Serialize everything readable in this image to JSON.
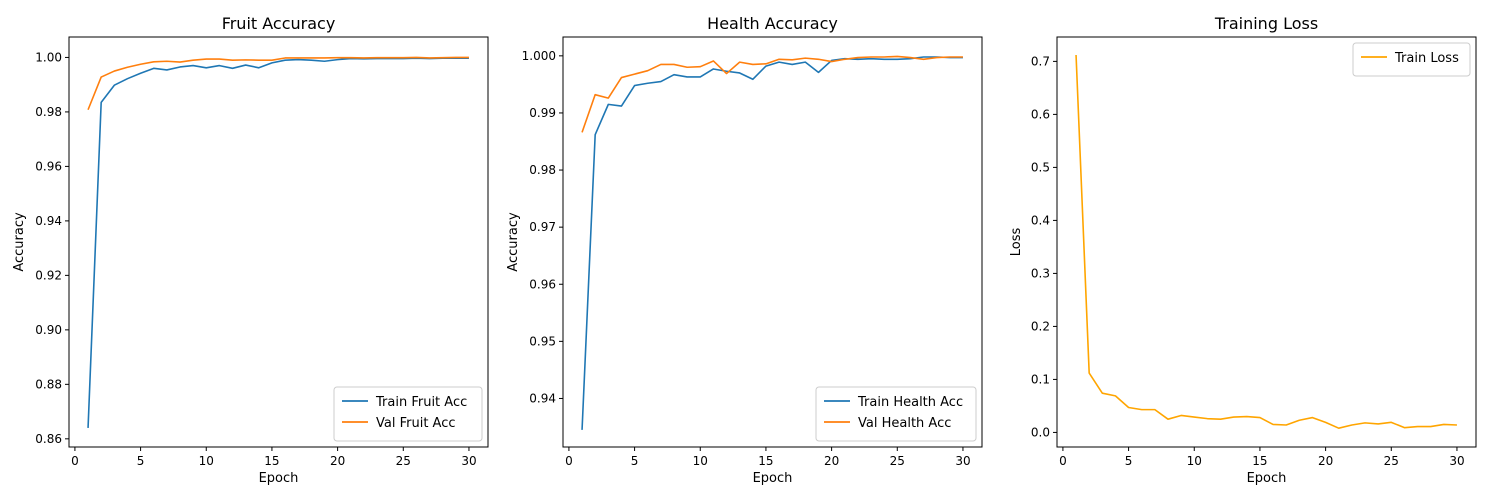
{
  "chart_data": [
    {
      "type": "line",
      "title": "Fruit Accuracy",
      "xlabel": "Epoch",
      "ylabel": "Accuracy",
      "xlim": [
        -0.45,
        31.45
      ],
      "ylim": [
        0.857,
        1.0075
      ],
      "xticks": [
        0,
        5,
        10,
        15,
        20,
        25,
        30
      ],
      "xtick_labels": [
        "0",
        "5",
        "10",
        "15",
        "20",
        "25",
        "30"
      ],
      "yticks": [
        0.86,
        0.88,
        0.9,
        0.92,
        0.94,
        0.96,
        0.98,
        1.0
      ],
      "ytick_labels": [
        "0.86",
        "0.88",
        "0.90",
        "0.92",
        "0.94",
        "0.96",
        "0.98",
        "1.00"
      ],
      "grid": false,
      "legend_position": "bottom-right",
      "x": [
        1,
        2,
        3,
        4,
        5,
        6,
        7,
        8,
        9,
        10,
        11,
        12,
        13,
        14,
        15,
        16,
        17,
        18,
        19,
        20,
        21,
        22,
        23,
        24,
        25,
        26,
        27,
        28,
        29,
        30
      ],
      "series": [
        {
          "name": "Train Fruit Acc",
          "color": "#1f77b4",
          "values": [
            0.864,
            0.9835,
            0.9898,
            0.9922,
            0.9942,
            0.996,
            0.9954,
            0.9965,
            0.997,
            0.9962,
            0.997,
            0.996,
            0.9972,
            0.9962,
            0.998,
            0.999,
            0.9992,
            0.999,
            0.9986,
            0.9992,
            0.9996,
            0.9995,
            0.9996,
            0.9996,
            0.9996,
            0.9997,
            0.9996,
            0.9997,
            0.9997,
            0.9997
          ]
        },
        {
          "name": "Val Fruit Acc",
          "color": "#ff7f0e",
          "values": [
            0.9808,
            0.9928,
            0.995,
            0.9964,
            0.9975,
            0.9984,
            0.9986,
            0.9983,
            0.999,
            0.9994,
            0.9994,
            0.999,
            0.9991,
            0.999,
            0.999,
            0.9998,
            0.9998,
            0.9998,
            0.9998,
            0.9999,
            0.9999,
            0.9998,
            0.9999,
            0.9999,
            0.9999,
            1.0,
            0.9998,
            0.9999,
            1.0,
            1.0
          ]
        }
      ]
    },
    {
      "type": "line",
      "title": "Health Accuracy",
      "xlabel": "Epoch",
      "ylabel": "Accuracy",
      "xlim": [
        -0.45,
        31.45
      ],
      "ylim": [
        0.9315,
        1.0033
      ],
      "xticks": [
        0,
        5,
        10,
        15,
        20,
        25,
        30
      ],
      "xtick_labels": [
        "0",
        "5",
        "10",
        "15",
        "20",
        "25",
        "30"
      ],
      "yticks": [
        0.94,
        0.95,
        0.96,
        0.97,
        0.98,
        0.99,
        1.0
      ],
      "ytick_labels": [
        "0.94",
        "0.95",
        "0.96",
        "0.97",
        "0.98",
        "0.99",
        "1.000"
      ],
      "grid": false,
      "legend_position": "bottom-right",
      "x": [
        1,
        2,
        3,
        4,
        5,
        6,
        7,
        8,
        9,
        10,
        11,
        12,
        13,
        14,
        15,
        16,
        17,
        18,
        19,
        20,
        21,
        22,
        23,
        24,
        25,
        26,
        27,
        28,
        29,
        30
      ],
      "series": [
        {
          "name": "Train Health Acc",
          "color": "#1f77b4",
          "values": [
            0.9345,
            0.9862,
            0.9915,
            0.9912,
            0.9948,
            0.9952,
            0.9955,
            0.9967,
            0.9963,
            0.9963,
            0.9977,
            0.9973,
            0.997,
            0.9959,
            0.9982,
            0.9989,
            0.9985,
            0.9989,
            0.9971,
            0.9992,
            0.9995,
            0.9994,
            0.9995,
            0.9994,
            0.9994,
            0.9995,
            0.9998,
            0.9998,
            0.9997,
            0.9997
          ]
        },
        {
          "name": "Val Health Acc",
          "color": "#ff7f0e",
          "values": [
            0.9866,
            0.9932,
            0.9926,
            0.9962,
            0.9968,
            0.9974,
            0.9985,
            0.9985,
            0.998,
            0.9981,
            0.9991,
            0.9969,
            0.9989,
            0.9985,
            0.9986,
            0.9994,
            0.9993,
            0.9996,
            0.9994,
            0.999,
            0.9994,
            0.9997,
            0.9998,
            0.9998,
            0.9999,
            0.9997,
            0.9994,
            0.9997,
            0.9998,
            0.9998
          ]
        }
      ]
    },
    {
      "type": "line",
      "title": "Training Loss",
      "xlabel": "Epoch",
      "ylabel": "Loss",
      "xlim": [
        -0.45,
        31.45
      ],
      "ylim": [
        -0.0275,
        0.746
      ],
      "xticks": [
        0,
        5,
        10,
        15,
        20,
        25,
        30
      ],
      "xtick_labels": [
        "0",
        "5",
        "10",
        "15",
        "20",
        "25",
        "30"
      ],
      "yticks": [
        0.0,
        0.1,
        0.2,
        0.3,
        0.4,
        0.5,
        0.6,
        0.7
      ],
      "ytick_labels": [
        "0.0",
        "0.1",
        "0.2",
        "0.3",
        "0.4",
        "0.5",
        "0.6",
        "0.7"
      ],
      "grid": false,
      "legend_position": "top-right",
      "x": [
        1,
        2,
        3,
        4,
        5,
        6,
        7,
        8,
        9,
        10,
        11,
        12,
        13,
        14,
        15,
        16,
        17,
        18,
        19,
        20,
        21,
        22,
        23,
        24,
        25,
        26,
        27,
        28,
        29,
        30
      ],
      "series": [
        {
          "name": "Train Loss",
          "color": "#ffa500",
          "values": [
            0.712,
            0.112,
            0.074,
            0.069,
            0.047,
            0.043,
            0.043,
            0.025,
            0.032,
            0.029,
            0.026,
            0.025,
            0.029,
            0.03,
            0.028,
            0.015,
            0.014,
            0.023,
            0.028,
            0.019,
            0.008,
            0.014,
            0.018,
            0.016,
            0.019,
            0.009,
            0.011,
            0.011,
            0.015,
            0.014
          ]
        }
      ]
    }
  ]
}
